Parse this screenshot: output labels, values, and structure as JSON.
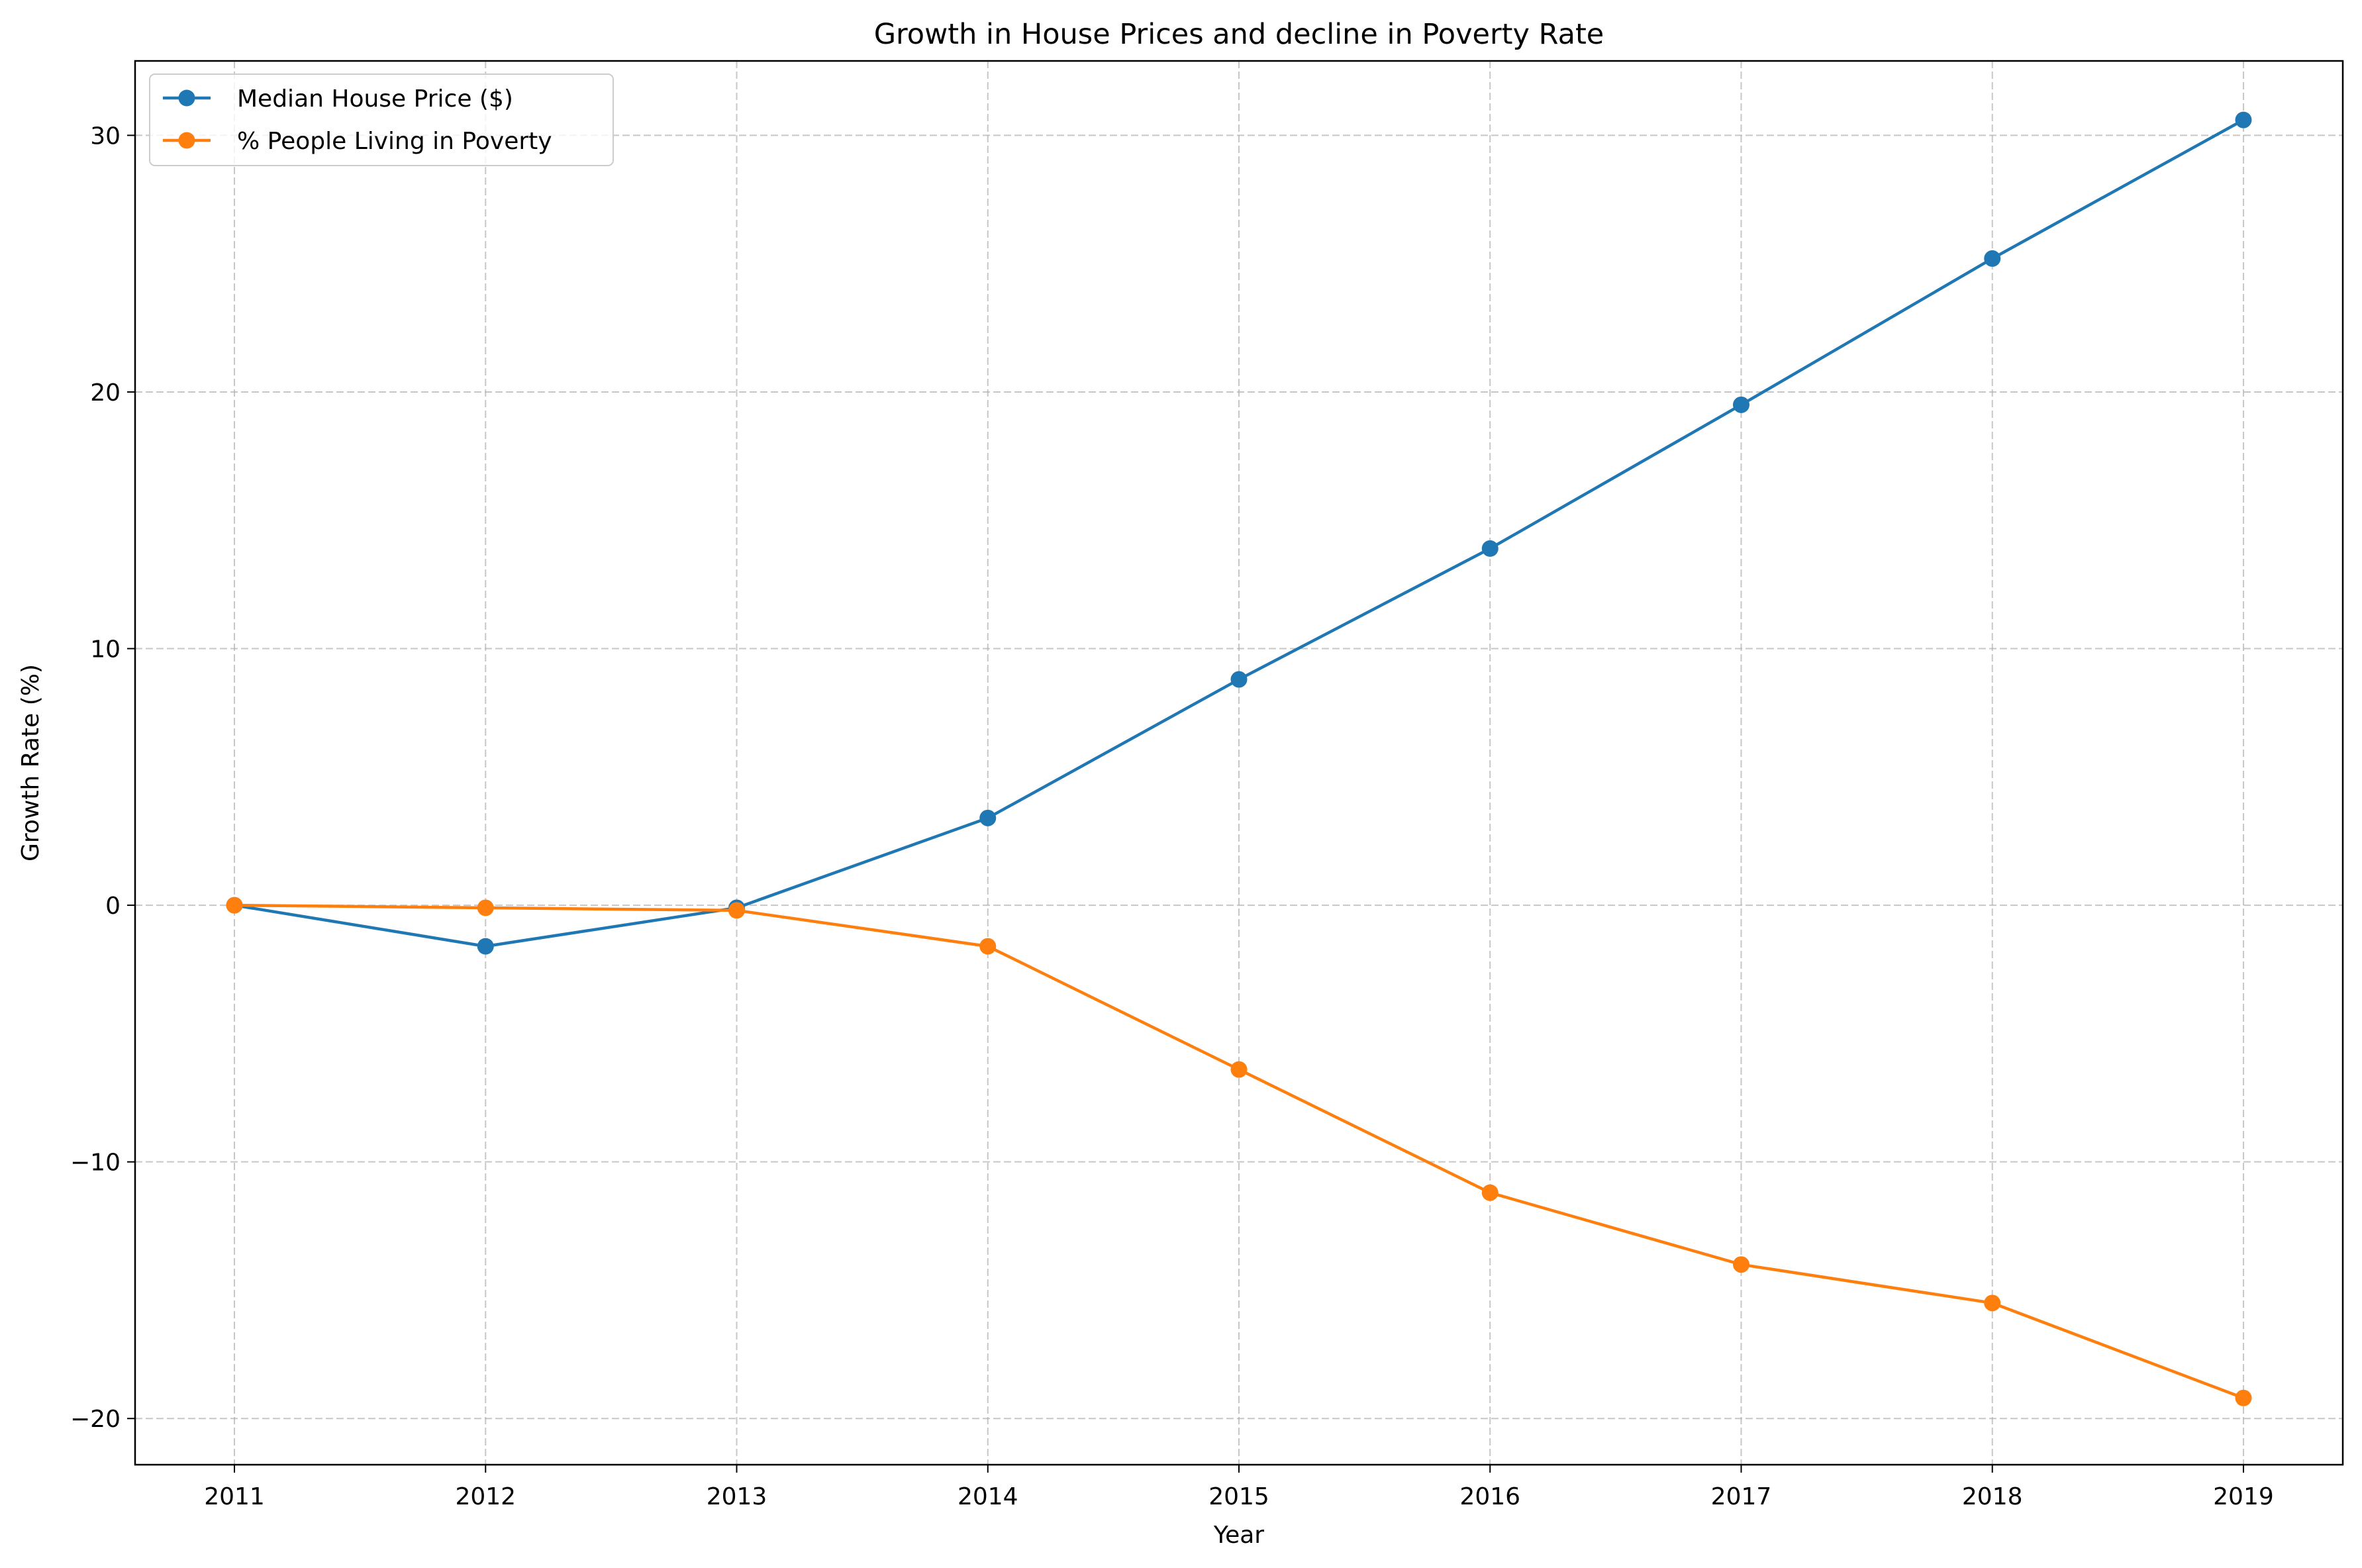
{
  "chart_data": {
    "type": "line",
    "title": "Growth in House Prices and decline in Poverty Rate",
    "xlabel": "Year",
    "ylabel": "Growth Rate (%)",
    "x": [
      "2011",
      "2012",
      "2013",
      "2014",
      "2015",
      "2016",
      "2017",
      "2018",
      "2019"
    ],
    "ylim": [
      -21.8,
      32.9
    ],
    "yticks": [
      -20,
      -10,
      0,
      10,
      20,
      30
    ],
    "ytick_labels": [
      "−20",
      "−10",
      "0",
      "10",
      "20",
      "30"
    ],
    "grid": true,
    "legend_position": "top-left",
    "series": [
      {
        "name": "Median House Price ($)",
        "color": "#1f77b4",
        "marker": "circle",
        "values": [
          0,
          -1.6,
          -0.1,
          3.4,
          8.8,
          13.9,
          19.5,
          25.2,
          30.6
        ]
      },
      {
        "name": "% People Living in Poverty",
        "color": "#ff7f0e",
        "marker": "circle",
        "values": [
          0,
          -0.1,
          -0.2,
          -1.6,
          -6.4,
          -11.2,
          -14.0,
          -15.5,
          -19.2
        ]
      }
    ]
  }
}
